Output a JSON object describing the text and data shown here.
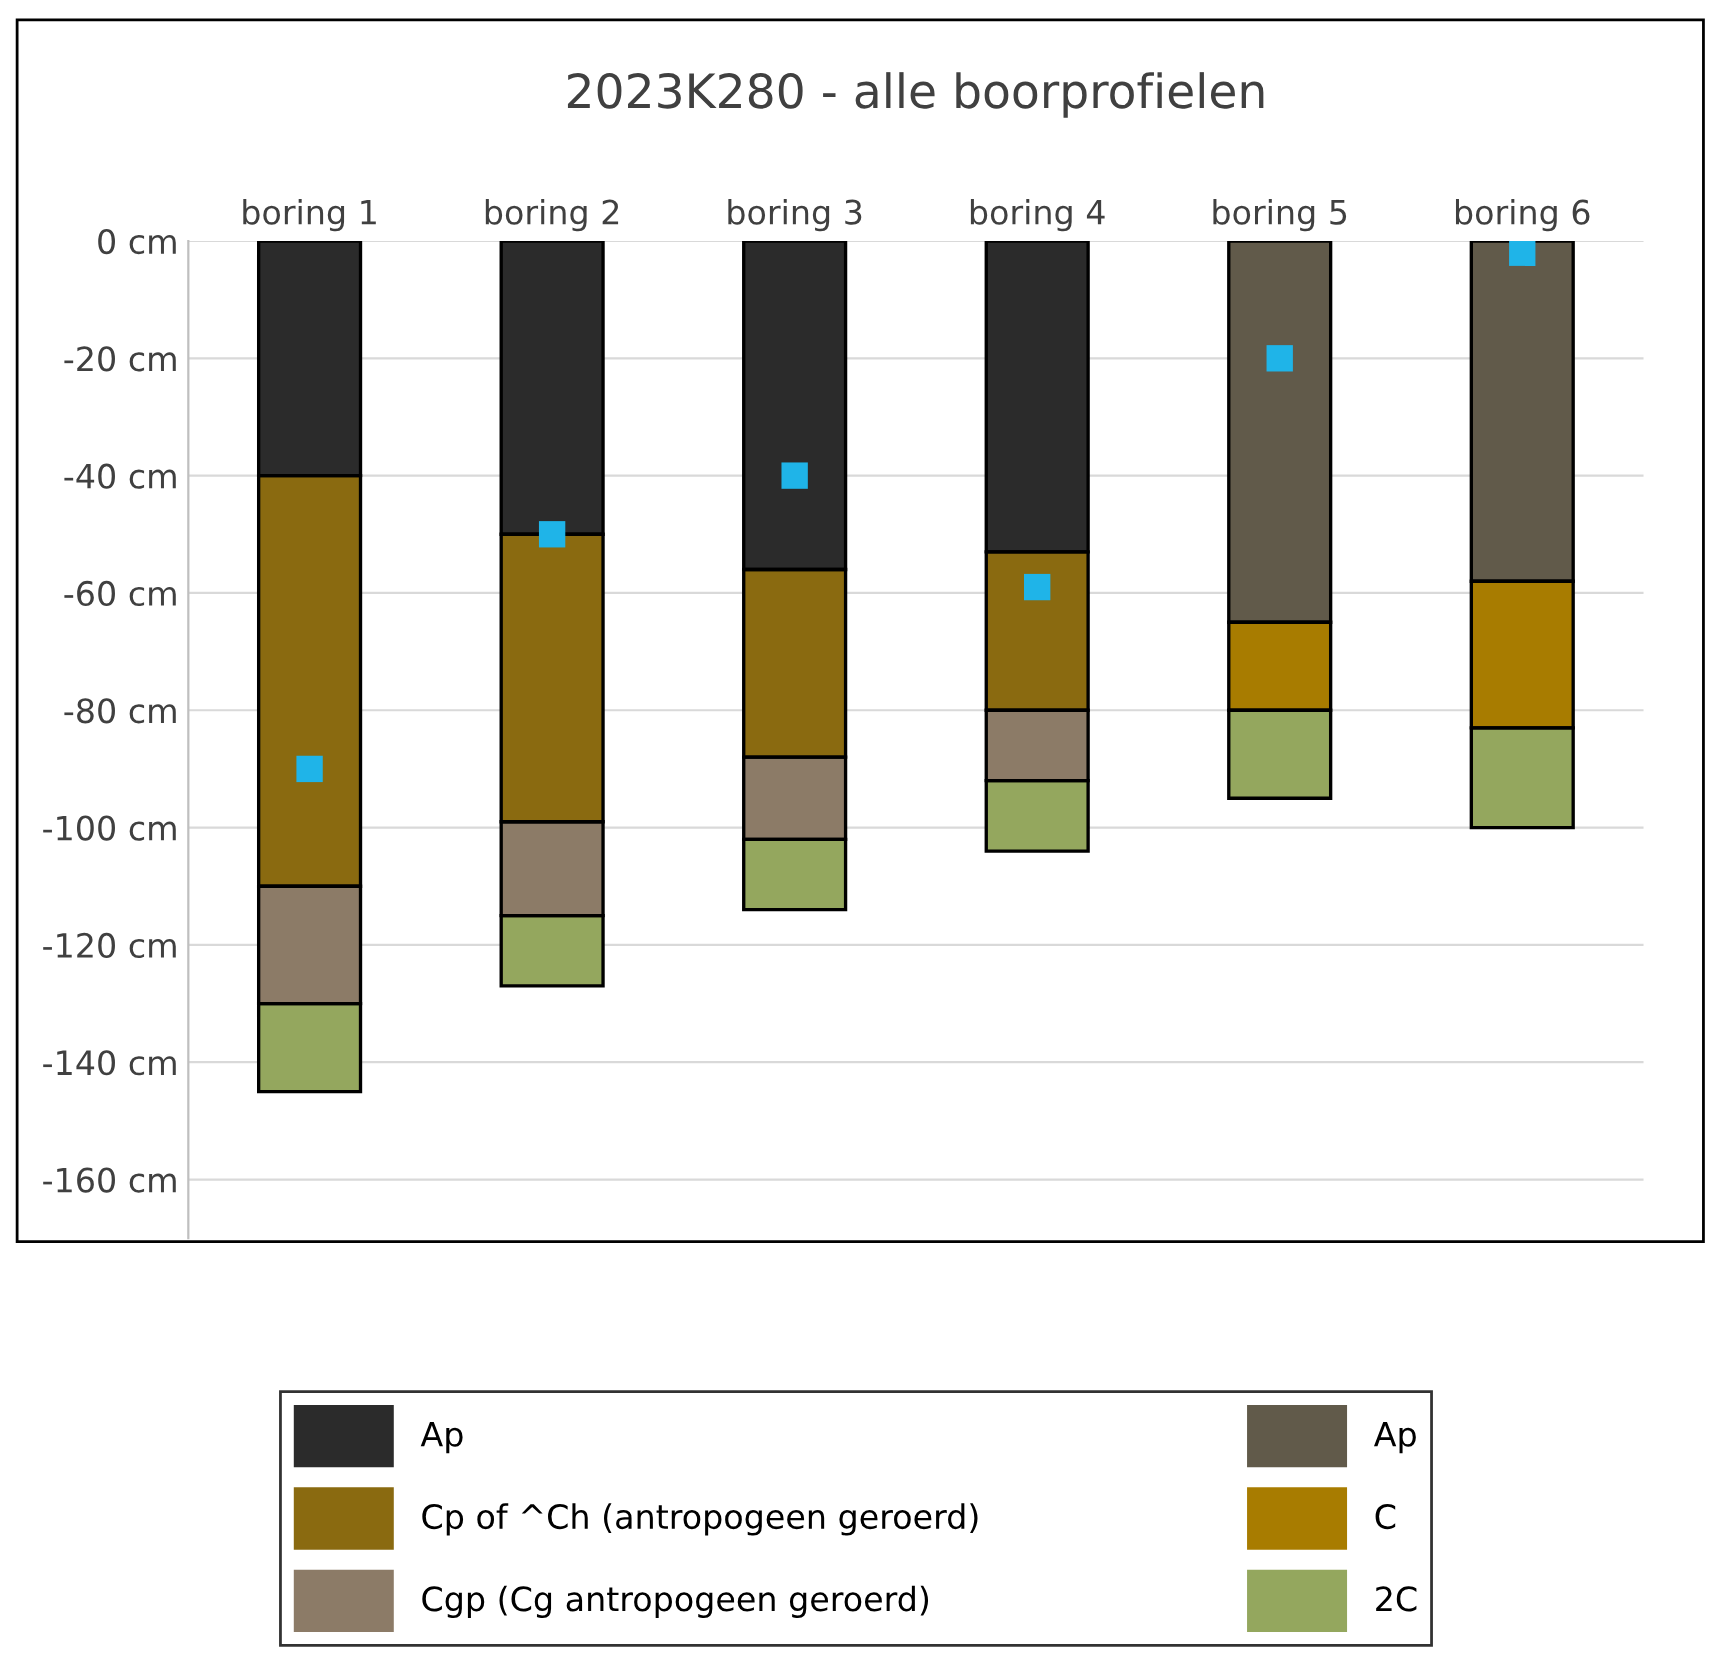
{
  "chart_data": {
    "type": "bar",
    "stacked": true,
    "title": "2023K280 - alle boorprofielen",
    "categories": [
      "boring 1",
      "boring 2",
      "boring 3",
      "boring 4",
      "boring 5",
      "boring 6"
    ],
    "series": [
      {
        "name": "Ap",
        "color": "#2b2b2b",
        "values": [
          -40,
          -50,
          -56,
          -53,
          null,
          null
        ]
      },
      {
        "name": "Cp of ^Ch (antropogeen geroerd)",
        "color": "#8a6a10",
        "values": [
          -70,
          -49,
          -32,
          -27,
          null,
          null
        ]
      },
      {
        "name": "Cgp (Cg antropogeen geroerd)",
        "color": "#8c7b67",
        "values": [
          -20,
          -16,
          -14,
          -12,
          null,
          null
        ]
      },
      {
        "name": "Ap",
        "color": "#615a4a",
        "values": [
          null,
          null,
          null,
          null,
          -65,
          -58
        ]
      },
      {
        "name": "C",
        "color": "#a87c00",
        "values": [
          null,
          null,
          null,
          null,
          -15,
          -25
        ]
      },
      {
        "name": "2C",
        "color": "#94a75e",
        "values": [
          -15,
          -12,
          -12,
          -12,
          -15,
          -17
        ]
      },
      {
        "type": "scatter",
        "color": "#1fb4e8",
        "marker": "square",
        "values": [
          -90,
          -50,
          -40,
          -59,
          -20,
          -2
        ]
      }
    ],
    "ylim": [
      -170,
      0
    ],
    "yticks": [
      {
        "value": 0,
        "label": "0 cm"
      },
      {
        "value": -20,
        "label": "-20 cm"
      },
      {
        "value": -40,
        "label": "-40 cm"
      },
      {
        "value": -60,
        "label": "-60 cm"
      },
      {
        "value": -80,
        "label": "-80 cm"
      },
      {
        "value": -100,
        "label": "-100 cm"
      },
      {
        "value": -120,
        "label": "-120 cm"
      },
      {
        "value": -140,
        "label": "-140 cm"
      },
      {
        "value": -160,
        "label": "-160 cm"
      }
    ],
    "grid": "y",
    "legend": "bottom"
  }
}
